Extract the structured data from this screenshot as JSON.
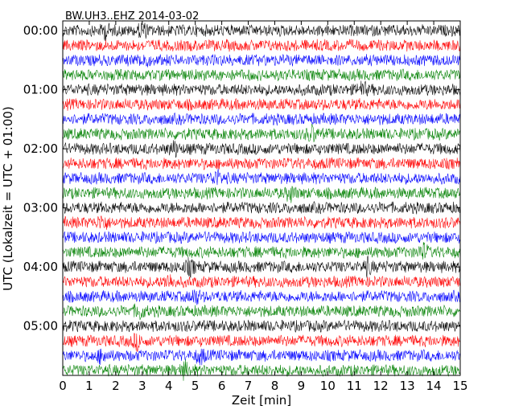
{
  "chart_data": {
    "type": "line",
    "title": "BW.UH3..EHZ 2014-03-02",
    "xlabel": "Zeit  [min]",
    "ylabel": "UTC (Lokalzeit = UTC + 01:00)",
    "xlim": [
      0,
      15
    ],
    "xticks": [
      "0",
      "1",
      "2",
      "3",
      "4",
      "5",
      "6",
      "7",
      "8",
      "9",
      "10",
      "11",
      "12",
      "13",
      "14",
      "15"
    ],
    "yticks": [
      "00:00",
      "01:00",
      "02:00",
      "03:00",
      "04:00",
      "05:00"
    ],
    "grid": false,
    "series_colors": [
      "#000000",
      "#ff0000",
      "#0000ff",
      "#008000"
    ],
    "traces": [
      {
        "start": "00:00",
        "color": "#000000",
        "events": [
          1.6,
          3.0
        ]
      },
      {
        "start": "00:15",
        "color": "#ff0000",
        "events": []
      },
      {
        "start": "00:30",
        "color": "#0000ff",
        "events": [
          3.05
        ]
      },
      {
        "start": "00:45",
        "color": "#008000",
        "events": []
      },
      {
        "start": "01:00",
        "color": "#000000",
        "events": [
          11.3
        ]
      },
      {
        "start": "01:15",
        "color": "#ff0000",
        "events": []
      },
      {
        "start": "01:30",
        "color": "#0000ff",
        "events": []
      },
      {
        "start": "01:45",
        "color": "#008000",
        "events": [
          9.4
        ]
      },
      {
        "start": "02:00",
        "color": "#000000",
        "events": [
          4.2
        ]
      },
      {
        "start": "02:15",
        "color": "#ff0000",
        "events": []
      },
      {
        "start": "02:30",
        "color": "#0000ff",
        "events": [
          5.8
        ]
      },
      {
        "start": "02:45",
        "color": "#008000",
        "events": [
          8.6
        ]
      },
      {
        "start": "03:00",
        "color": "#000000",
        "events": []
      },
      {
        "start": "03:15",
        "color": "#ff0000",
        "events": [
          1.5
        ]
      },
      {
        "start": "03:30",
        "color": "#0000ff",
        "events": []
      },
      {
        "start": "03:45",
        "color": "#008000",
        "events": [
          13.6
        ]
      },
      {
        "start": "04:00",
        "color": "#000000",
        "events": [
          4.8,
          11.5
        ]
      },
      {
        "start": "04:15",
        "color": "#ff0000",
        "events": [
          4.0
        ]
      },
      {
        "start": "04:30",
        "color": "#0000ff",
        "events": [
          5.0
        ]
      },
      {
        "start": "04:45",
        "color": "#008000",
        "events": [
          2.9
        ]
      },
      {
        "start": "05:00",
        "color": "#000000",
        "events": []
      },
      {
        "start": "05:15",
        "color": "#ff0000",
        "events": [
          2.8
        ]
      },
      {
        "start": "05:30",
        "color": "#0000ff",
        "events": [
          1.5,
          5.2
        ]
      },
      {
        "start": "05:45",
        "color": "#008000",
        "events": [
          4.6
        ]
      }
    ]
  }
}
